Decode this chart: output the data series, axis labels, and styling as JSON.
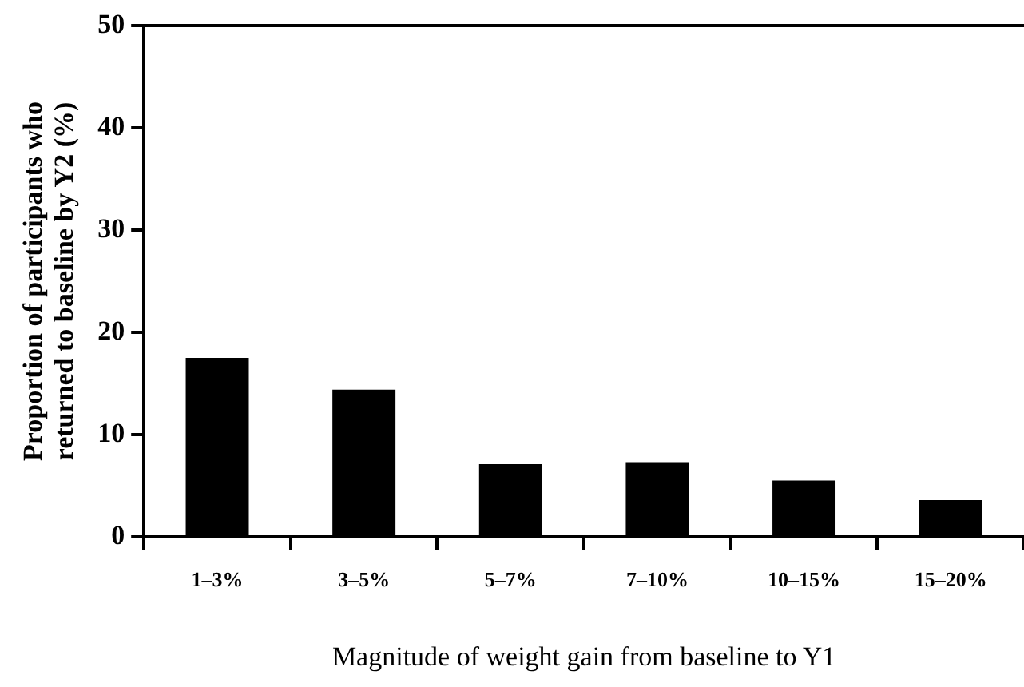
{
  "chart_data": {
    "type": "bar",
    "xlabel": "Magnitude of weight gain from baseline to Y1",
    "ylabel": "Proportion of participants who\nreturned to baseline by Y2 (%)",
    "categories": [
      "1–3%",
      "3–5%",
      "5–7%",
      "7–10%",
      "10–15%",
      "15–20%"
    ],
    "values": [
      17.5,
      14.4,
      7.1,
      7.3,
      5.5,
      3.6
    ],
    "color": "#000000",
    "ylim": [
      0,
      50
    ],
    "yticks": [
      0,
      10,
      20,
      30,
      40,
      50
    ],
    "grid": false,
    "legend": false
  }
}
